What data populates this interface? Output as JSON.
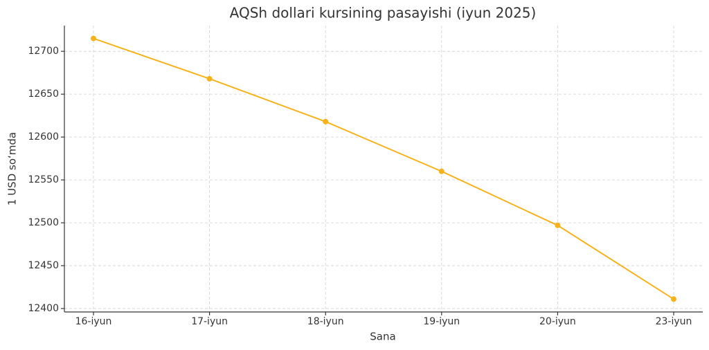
{
  "chart_data": {
    "type": "line",
    "title": "AQSh dollari kursining pasayishi (iyun 2025)",
    "x_label": "Sana",
    "y_label": "1 USD so‘mda",
    "categories": [
      "16-iyun",
      "17-iyun",
      "18-iyun",
      "19-iyun",
      "20-iyun",
      "23-iyun"
    ],
    "series": [
      {
        "name": "USD",
        "color": "#f5b21a",
        "values": [
          12715,
          12668,
          12618,
          12560,
          12497,
          12411
        ]
      }
    ],
    "ylim": [
      12396,
      12730
    ],
    "yticks": [
      12400,
      12450,
      12500,
      12550,
      12600,
      12650,
      12700
    ],
    "grid": true
  }
}
